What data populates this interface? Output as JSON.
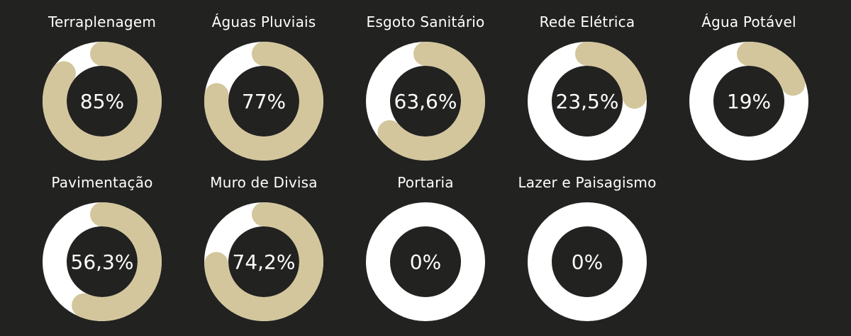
{
  "colors": {
    "background": "#222220",
    "track": "#ffffff",
    "progress": "#d3c69c",
    "text": "#ffffff"
  },
  "metrics": [
    {
      "title": "Terraplenagem",
      "value_label": "85%",
      "progress": 0.85
    },
    {
      "title": "Águas Pluviais",
      "value_label": "77%",
      "progress": 0.77
    },
    {
      "title": "Esgoto Sanitário",
      "value_label": "63,6%",
      "progress": 0.636
    },
    {
      "title": "Rede Elétrica",
      "value_label": "23,5%",
      "progress": 0.235
    },
    {
      "title": "Água Potável",
      "value_label": "19%",
      "progress": 0.19
    },
    {
      "title": "Pavimentação",
      "value_label": "56,3%",
      "progress": 0.563
    },
    {
      "title": "Muro de Divisa",
      "value_label": "74,2%",
      "progress": 0.742
    },
    {
      "title": "Portaria",
      "value_label": "0%",
      "progress": 0
    },
    {
      "title": "Lazer e Paisagismo",
      "value_label": "0%",
      "progress": 0
    }
  ]
}
